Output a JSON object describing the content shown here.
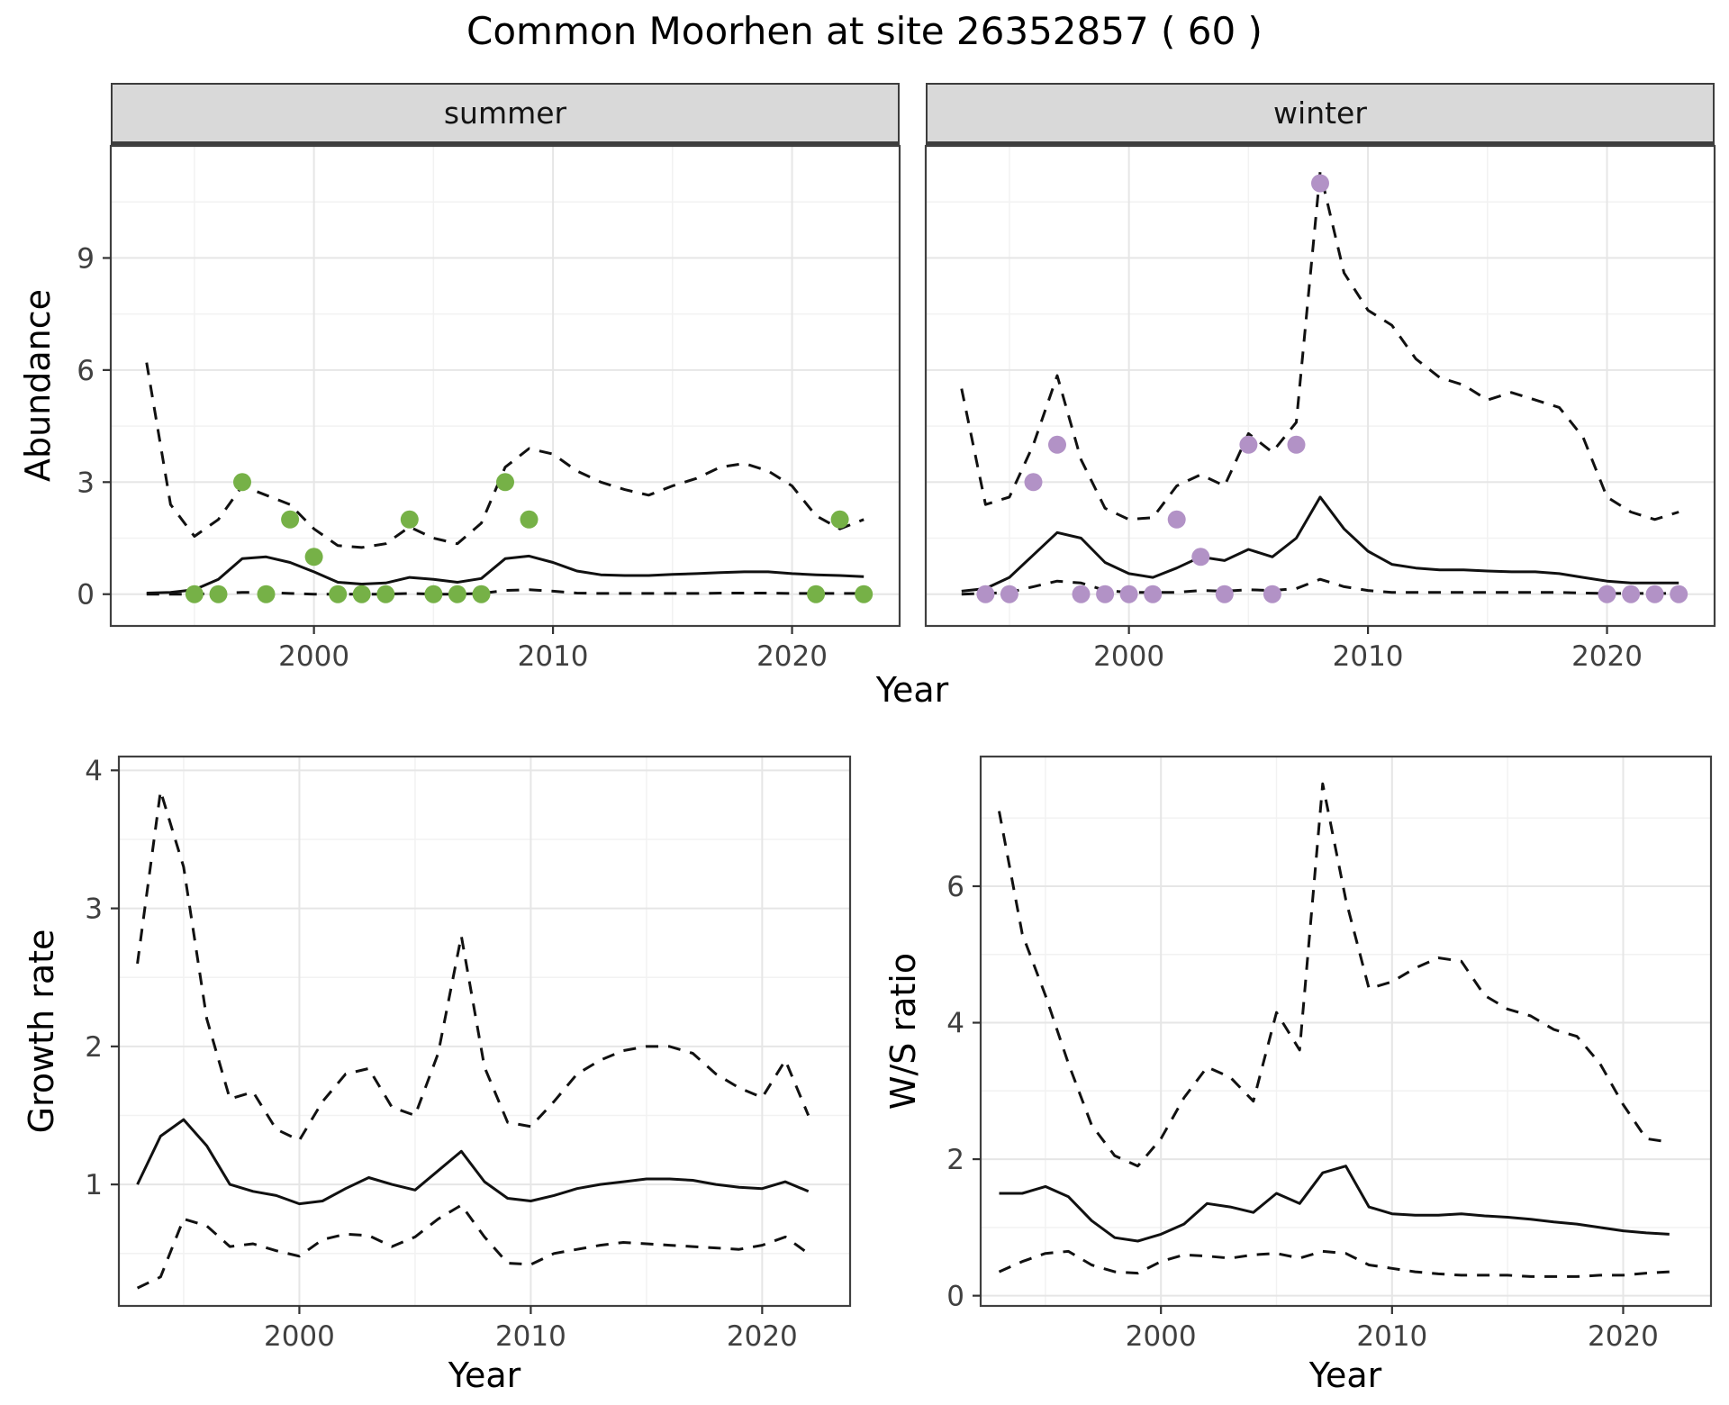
{
  "title": "Common Moorhen at site 26352857 ( 60 )",
  "colors": {
    "summer_points": "#76B147",
    "winter_points": "#B292C6",
    "line": "#111111",
    "strip_bg": "#D9D9D9",
    "grid_major": "#E6E6E6",
    "grid_minor": "#F2F2F2",
    "panel_border": "#404040",
    "tick_mark": "#333333",
    "tick_label": "#404040",
    "axis_title": "#000000"
  },
  "chart_data": [
    {
      "id": "abundance",
      "type": "line",
      "ylabel": "Abundance",
      "xlabel": "Year",
      "xlim": [
        1991.5,
        2024.5
      ],
      "ylim": [
        -0.85,
        12
      ],
      "x_ticks": [
        2000,
        2010,
        2020
      ],
      "x_minor_ticks": [
        1995,
        2005,
        2015
      ],
      "y_ticks": [
        0,
        3,
        6,
        9
      ],
      "y_minor_ticks": [
        1.5,
        4.5,
        7.5,
        10.5
      ],
      "facets": [
        {
          "label": "summer",
          "years": [
            1993,
            1994,
            1995,
            1996,
            1997,
            1998,
            1999,
            2000,
            2001,
            2002,
            2003,
            2004,
            2005,
            2006,
            2007,
            2008,
            2009,
            2010,
            2011,
            2012,
            2013,
            2014,
            2015,
            2016,
            2017,
            2018,
            2019,
            2020,
            2021,
            2022,
            2023
          ],
          "fit": [
            0.03,
            0.05,
            0.12,
            0.4,
            0.95,
            1.0,
            0.85,
            0.6,
            0.32,
            0.27,
            0.3,
            0.45,
            0.4,
            0.32,
            0.42,
            0.95,
            1.02,
            0.85,
            0.62,
            0.52,
            0.5,
            0.5,
            0.53,
            0.55,
            0.58,
            0.6,
            0.6,
            0.55,
            0.52,
            0.5,
            0.47
          ],
          "ci_upper": [
            6.2,
            2.4,
            1.55,
            2.0,
            2.9,
            2.65,
            2.4,
            1.75,
            1.3,
            1.25,
            1.35,
            1.8,
            1.5,
            1.35,
            1.9,
            3.4,
            3.9,
            3.75,
            3.3,
            3.0,
            2.8,
            2.65,
            2.9,
            3.1,
            3.4,
            3.5,
            3.3,
            2.9,
            2.1,
            1.75,
            2.0
          ],
          "ci_lower": [
            0,
            0,
            0,
            0.02,
            0.05,
            0.05,
            0.02,
            0,
            0,
            0,
            0,
            0.02,
            0,
            0,
            0.02,
            0.1,
            0.12,
            0.08,
            0.03,
            0.02,
            0.02,
            0.02,
            0.02,
            0.02,
            0.03,
            0.03,
            0.03,
            0.02,
            0.02,
            0.02,
            0.02
          ],
          "observations": {
            "years": [
              1995,
              1996,
              1997,
              1998,
              1999,
              2000,
              2001,
              2002,
              2003,
              2004,
              2005,
              2006,
              2007,
              2008,
              2009,
              2021,
              2022,
              2023
            ],
            "values": [
              0,
              0,
              3,
              0,
              2,
              1,
              0,
              0,
              0,
              2,
              0,
              0,
              0,
              3,
              2,
              0,
              2,
              0
            ]
          }
        },
        {
          "label": "winter",
          "years": [
            1993,
            1994,
            1995,
            1996,
            1997,
            1998,
            1999,
            2000,
            2001,
            2002,
            2003,
            2004,
            2005,
            2006,
            2007,
            2008,
            2009,
            2010,
            2011,
            2012,
            2013,
            2014,
            2015,
            2016,
            2017,
            2018,
            2019,
            2020,
            2021,
            2022,
            2023
          ],
          "fit": [
            0.08,
            0.15,
            0.45,
            1.05,
            1.65,
            1.5,
            0.85,
            0.55,
            0.45,
            0.7,
            1.0,
            0.9,
            1.2,
            1.0,
            1.5,
            2.6,
            1.75,
            1.15,
            0.8,
            0.7,
            0.65,
            0.65,
            0.62,
            0.6,
            0.6,
            0.55,
            0.45,
            0.35,
            0.3,
            0.3,
            0.3
          ],
          "ci_upper": [
            5.5,
            2.4,
            2.6,
            4.0,
            5.85,
            3.6,
            2.3,
            2.0,
            2.05,
            2.9,
            3.2,
            2.9,
            4.3,
            3.8,
            4.6,
            11.3,
            8.6,
            7.6,
            7.2,
            6.3,
            5.8,
            5.6,
            5.2,
            5.4,
            5.2,
            5.0,
            4.2,
            2.6,
            2.2,
            2.0,
            2.2
          ],
          "ci_lower": [
            0,
            0.02,
            0.05,
            0.2,
            0.35,
            0.3,
            0.1,
            0.05,
            0.05,
            0.05,
            0.1,
            0.08,
            0.12,
            0.1,
            0.15,
            0.4,
            0.2,
            0.1,
            0.05,
            0.05,
            0.05,
            0.05,
            0.05,
            0.05,
            0.05,
            0.05,
            0.03,
            0.02,
            0.02,
            0.02,
            0.02
          ],
          "observations": {
            "years": [
              1994,
              1995,
              1996,
              1997,
              1998,
              1999,
              2000,
              2001,
              2002,
              2003,
              2004,
              2005,
              2006,
              2007,
              2008,
              2020,
              2021,
              2022,
              2023
            ],
            "values": [
              0,
              0,
              3,
              4,
              0,
              0,
              0,
              0,
              2,
              1,
              0,
              4,
              0,
              4,
              11,
              0,
              0,
              0,
              0
            ]
          }
        }
      ]
    },
    {
      "id": "growth-rate",
      "type": "line",
      "ylabel": "Growth rate",
      "xlabel": "Year",
      "xlim": [
        1992.2,
        2023.8
      ],
      "ylim": [
        0.12,
        4.1
      ],
      "x_ticks": [
        2000,
        2010,
        2020
      ],
      "x_minor_ticks": [
        1995,
        2005,
        2015
      ],
      "y_ticks": [
        1,
        2,
        3,
        4
      ],
      "y_minor_ticks": [
        0.5,
        1.5,
        2.5,
        3.5
      ],
      "years": [
        1993,
        1994,
        1995,
        1996,
        1997,
        1998,
        1999,
        2000,
        2001,
        2002,
        2003,
        2004,
        2005,
        2006,
        2007,
        2008,
        2009,
        2010,
        2011,
        2012,
        2013,
        2014,
        2015,
        2016,
        2017,
        2018,
        2019,
        2020,
        2021,
        2022
      ],
      "fit": [
        1.0,
        1.35,
        1.47,
        1.28,
        1.0,
        0.95,
        0.92,
        0.86,
        0.88,
        0.97,
        1.05,
        1.0,
        0.96,
        1.1,
        1.24,
        1.02,
        0.9,
        0.88,
        0.92,
        0.97,
        1.0,
        1.02,
        1.04,
        1.04,
        1.03,
        1.0,
        0.98,
        0.97,
        1.02,
        0.95
      ],
      "ci_upper": [
        2.6,
        3.85,
        3.3,
        2.2,
        1.62,
        1.67,
        1.4,
        1.32,
        1.6,
        1.8,
        1.84,
        1.56,
        1.5,
        1.95,
        2.8,
        1.85,
        1.45,
        1.42,
        1.6,
        1.8,
        1.9,
        1.97,
        2.0,
        2.0,
        1.95,
        1.8,
        1.7,
        1.63,
        1.9,
        1.5
      ],
      "ci_lower": [
        0.25,
        0.33,
        0.75,
        0.7,
        0.55,
        0.57,
        0.52,
        0.48,
        0.6,
        0.64,
        0.63,
        0.55,
        0.62,
        0.75,
        0.85,
        0.62,
        0.43,
        0.42,
        0.5,
        0.53,
        0.56,
        0.58,
        0.57,
        0.56,
        0.55,
        0.54,
        0.53,
        0.56,
        0.62,
        0.5
      ]
    },
    {
      "id": "ws-ratio",
      "type": "line",
      "ylabel": "W/S ratio",
      "xlabel": "Year",
      "xlim": [
        1992.2,
        2023.8
      ],
      "ylim": [
        -0.15,
        7.9
      ],
      "x_ticks": [
        2000,
        2010,
        2020
      ],
      "x_minor_ticks": [
        1995,
        2005,
        2015
      ],
      "y_ticks": [
        0,
        2,
        4,
        6
      ],
      "y_minor_ticks": [
        1,
        3,
        5,
        7
      ],
      "years": [
        1993,
        1994,
        1995,
        1996,
        1997,
        1998,
        1999,
        2000,
        2001,
        2002,
        2003,
        2004,
        2005,
        2006,
        2007,
        2008,
        2009,
        2010,
        2011,
        2012,
        2013,
        2014,
        2015,
        2016,
        2017,
        2018,
        2019,
        2020,
        2021,
        2022
      ],
      "fit": [
        1.5,
        1.5,
        1.6,
        1.45,
        1.1,
        0.85,
        0.8,
        0.9,
        1.05,
        1.35,
        1.3,
        1.22,
        1.5,
        1.35,
        1.8,
        1.9,
        1.3,
        1.2,
        1.18,
        1.18,
        1.2,
        1.17,
        1.15,
        1.12,
        1.08,
        1.05,
        1.0,
        0.95,
        0.92,
        0.9
      ],
      "ci_upper": [
        7.1,
        5.3,
        4.4,
        3.4,
        2.5,
        2.05,
        1.9,
        2.3,
        2.9,
        3.35,
        3.2,
        2.85,
        4.15,
        3.6,
        7.5,
        5.8,
        4.5,
        4.6,
        4.8,
        4.95,
        4.9,
        4.4,
        4.2,
        4.1,
        3.9,
        3.8,
        3.4,
        2.8,
        2.3,
        2.25
      ],
      "ci_lower": [
        0.35,
        0.5,
        0.62,
        0.65,
        0.45,
        0.35,
        0.33,
        0.5,
        0.6,
        0.58,
        0.55,
        0.6,
        0.62,
        0.55,
        0.65,
        0.62,
        0.45,
        0.4,
        0.35,
        0.32,
        0.3,
        0.3,
        0.3,
        0.28,
        0.28,
        0.28,
        0.3,
        0.3,
        0.33,
        0.35
      ]
    }
  ]
}
